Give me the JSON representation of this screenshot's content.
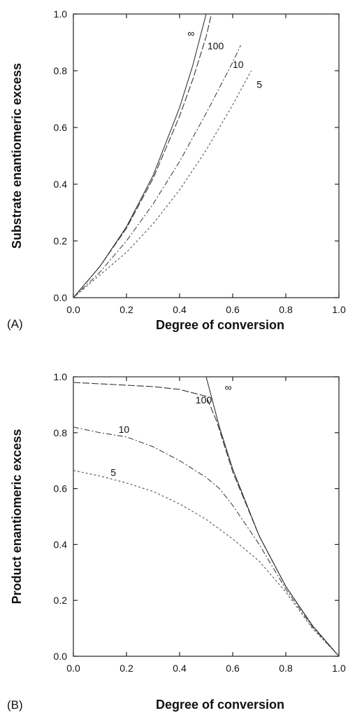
{
  "chart_data": [
    {
      "type": "line",
      "panel_label": "(A)",
      "xlabel": "Degree of conversion",
      "ylabel": "Substrate enantiomeric excess",
      "xlim": [
        0,
        1
      ],
      "ylim": [
        0,
        1
      ],
      "xticks": [
        "0.0",
        "0.2",
        "0.4",
        "0.6",
        "0.8",
        "1.0"
      ],
      "yticks": [
        "0.0",
        "0.2",
        "0.4",
        "0.6",
        "0.8",
        "1.0"
      ],
      "series": [
        {
          "name": "∞",
          "x": [
            0,
            0.1,
            0.2,
            0.3,
            0.4,
            0.45,
            0.5
          ],
          "y": [
            0,
            0.11,
            0.25,
            0.43,
            0.67,
            0.82,
            1.0
          ]
        },
        {
          "name": "100",
          "x": [
            0,
            0.1,
            0.2,
            0.3,
            0.4,
            0.45,
            0.5,
            0.52
          ],
          "y": [
            0,
            0.11,
            0.245,
            0.42,
            0.64,
            0.77,
            0.92,
            1.0
          ]
        },
        {
          "name": "10",
          "x": [
            0,
            0.1,
            0.2,
            0.3,
            0.4,
            0.5,
            0.6,
            0.63
          ],
          "y": [
            0,
            0.09,
            0.2,
            0.33,
            0.48,
            0.65,
            0.83,
            0.89
          ]
        },
        {
          "name": "5",
          "x": [
            0,
            0.1,
            0.2,
            0.3,
            0.4,
            0.5,
            0.6,
            0.67
          ],
          "y": [
            0,
            0.08,
            0.16,
            0.26,
            0.38,
            0.52,
            0.68,
            0.8
          ]
        }
      ],
      "curve_labels": [
        {
          "text": "∞",
          "x": 0.43,
          "y": 0.92
        },
        {
          "text": "100",
          "x": 0.505,
          "y": 0.875
        },
        {
          "text": "10",
          "x": 0.6,
          "y": 0.81
        },
        {
          "text": "5",
          "x": 0.69,
          "y": 0.74
        }
      ]
    },
    {
      "type": "line",
      "panel_label": "(B)",
      "xlabel": "Degree of conversion",
      "ylabel": "Product enantiomeric excess",
      "xlim": [
        0,
        1
      ],
      "ylim": [
        0,
        1
      ],
      "xticks": [
        "0.0",
        "0.2",
        "0.4",
        "0.6",
        "0.8",
        "1.0"
      ],
      "yticks": [
        "0.0",
        "0.2",
        "0.4",
        "0.6",
        "0.8",
        "1.0"
      ],
      "series": [
        {
          "name": "∞",
          "x": [
            0,
            0.5,
            0.55,
            0.6,
            0.7,
            0.8,
            0.9,
            1.0
          ],
          "y": [
            1.0,
            1.0,
            0.82,
            0.67,
            0.43,
            0.25,
            0.11,
            0
          ]
        },
        {
          "name": "100",
          "x": [
            0,
            0.1,
            0.2,
            0.3,
            0.4,
            0.5,
            0.54,
            0.6,
            0.7,
            0.8,
            0.9,
            1.0
          ],
          "y": [
            0.98,
            0.975,
            0.97,
            0.965,
            0.955,
            0.93,
            0.84,
            0.66,
            0.43,
            0.25,
            0.11,
            0
          ]
        },
        {
          "name": "10",
          "x": [
            0,
            0.1,
            0.2,
            0.3,
            0.4,
            0.5,
            0.55,
            0.6,
            0.7,
            0.8,
            0.9,
            1.0
          ],
          "y": [
            0.82,
            0.8,
            0.785,
            0.75,
            0.7,
            0.64,
            0.6,
            0.54,
            0.4,
            0.24,
            0.105,
            0
          ]
        },
        {
          "name": "5",
          "x": [
            0,
            0.1,
            0.2,
            0.3,
            0.4,
            0.5,
            0.6,
            0.7,
            0.8,
            0.9,
            1.0
          ],
          "y": [
            0.665,
            0.645,
            0.62,
            0.59,
            0.545,
            0.49,
            0.42,
            0.34,
            0.23,
            0.1,
            0
          ]
        }
      ],
      "curve_labels": [
        {
          "text": "∞",
          "x": 0.57,
          "y": 0.95
        },
        {
          "text": "100",
          "x": 0.46,
          "y": 0.905
        },
        {
          "text": "10",
          "x": 0.17,
          "y": 0.8
        },
        {
          "text": "5",
          "x": 0.14,
          "y": 0.645
        }
      ]
    }
  ]
}
